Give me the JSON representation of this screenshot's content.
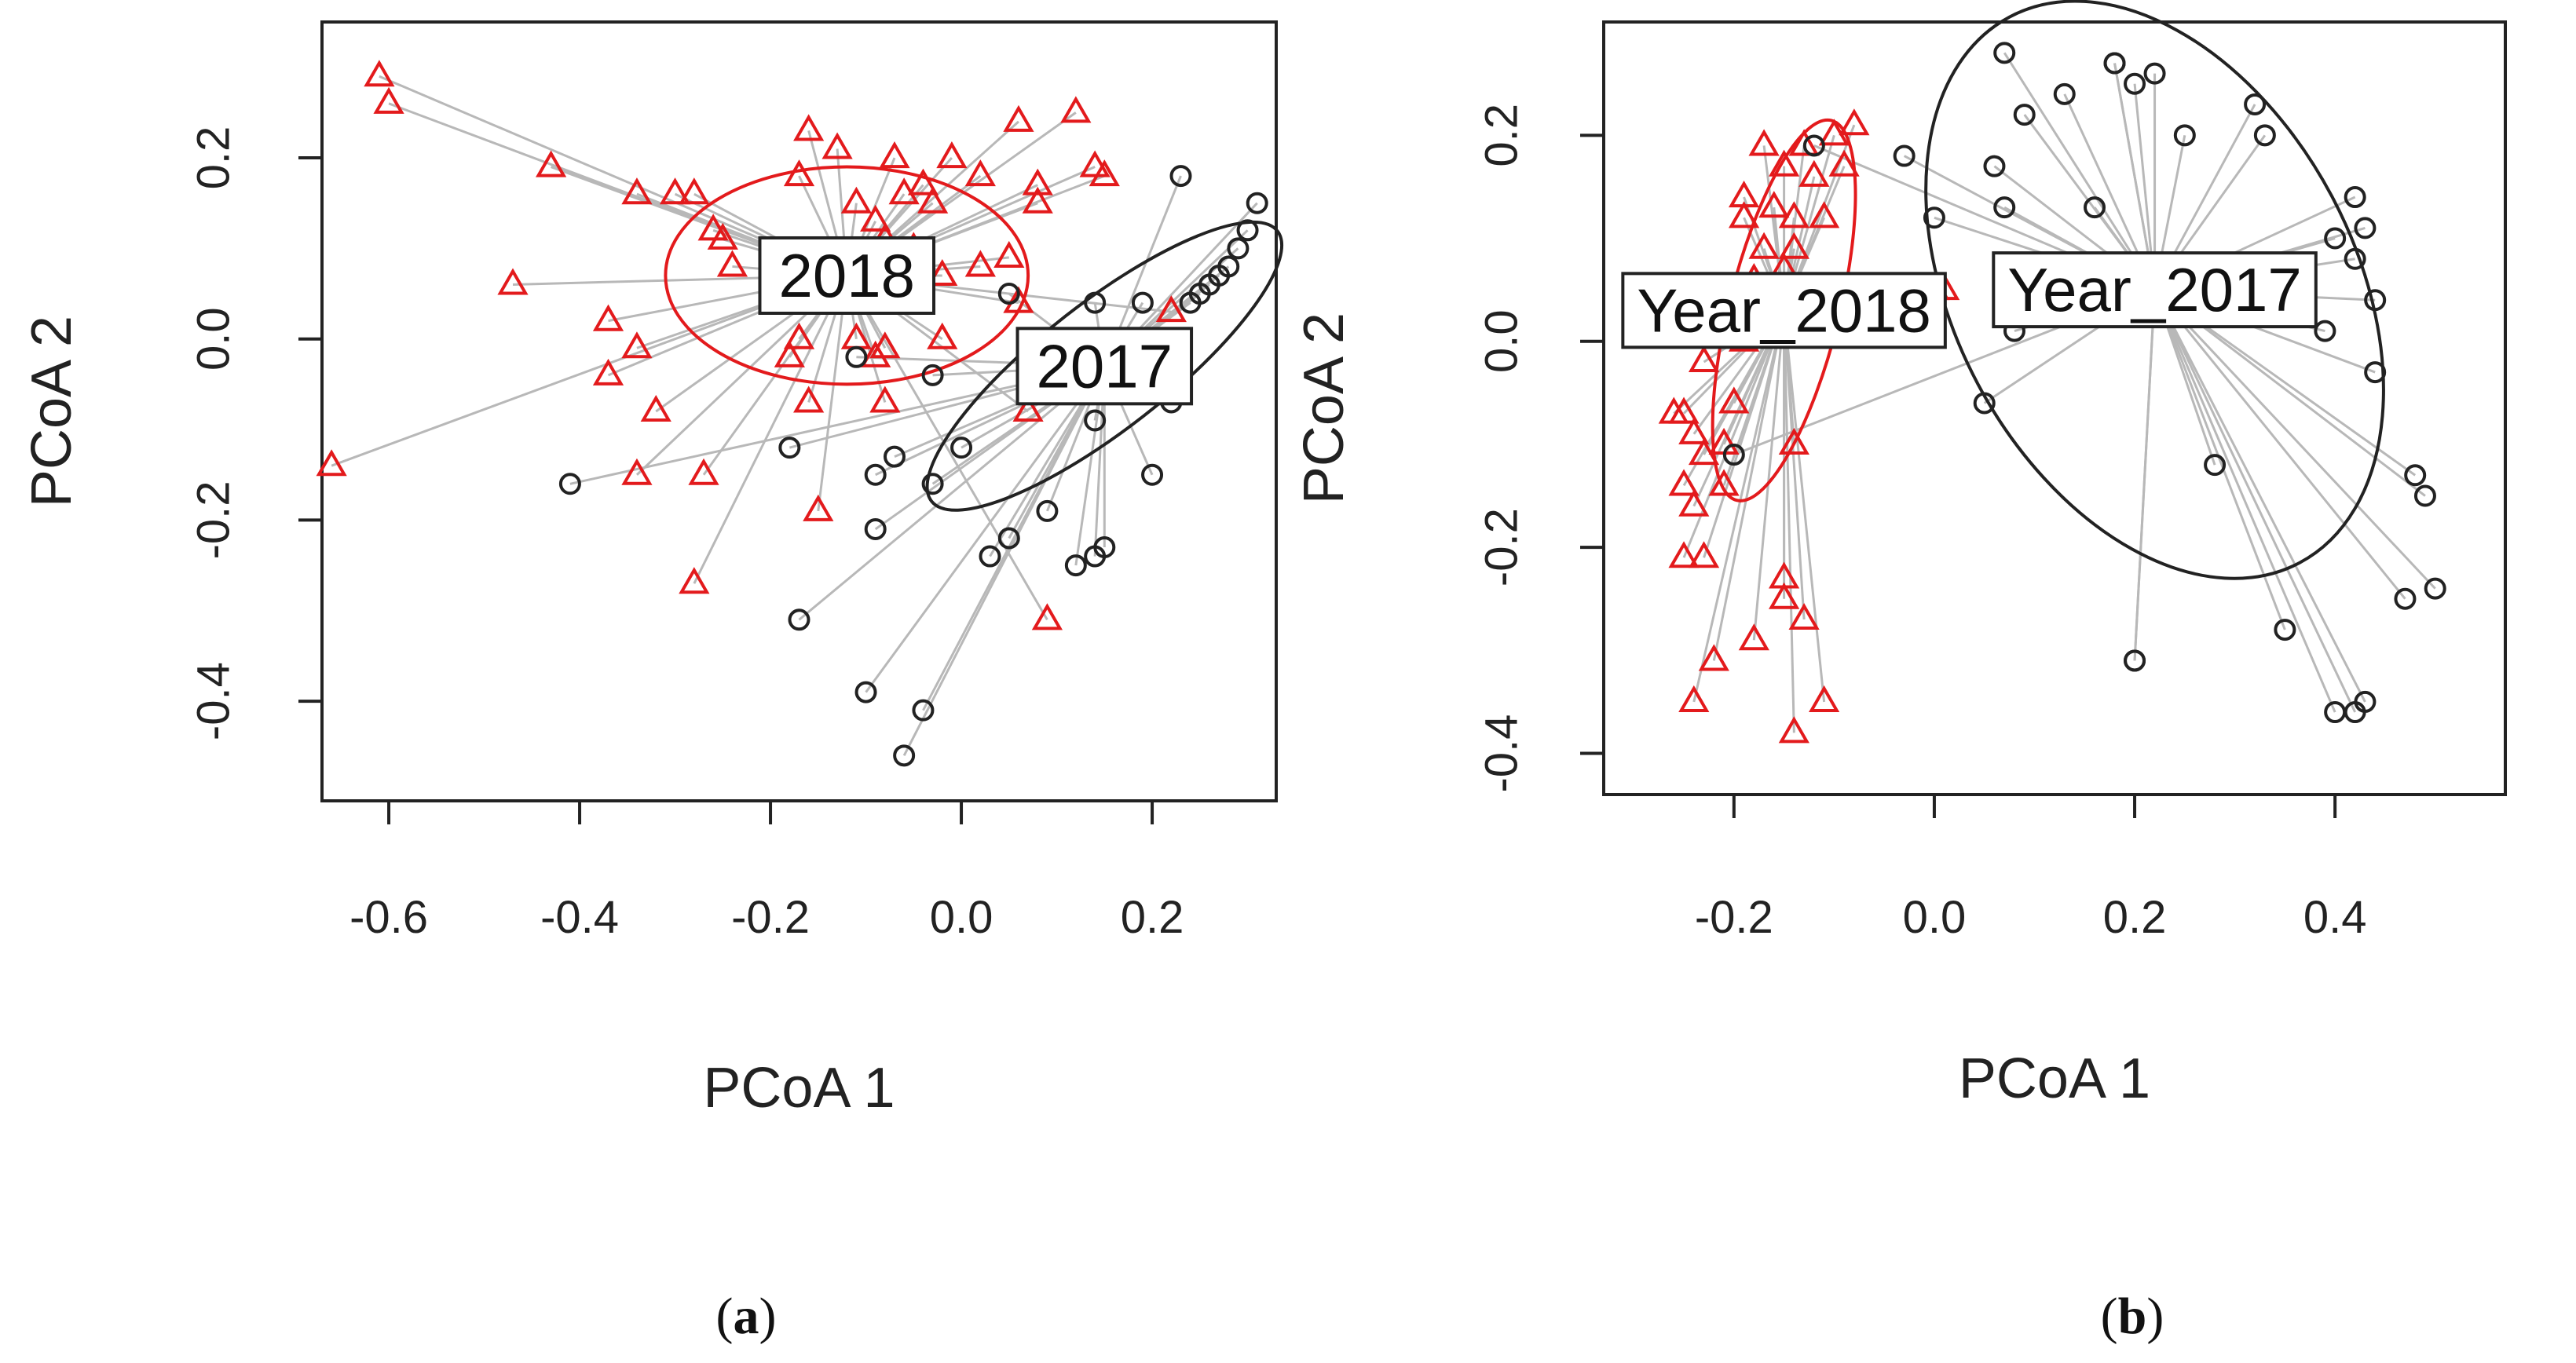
{
  "figure": {
    "panels": [
      {
        "caption_open": "(",
        "caption_letter": "a",
        "caption_close": ")"
      },
      {
        "caption_open": "(",
        "caption_letter": "b",
        "caption_close": ")"
      }
    ]
  },
  "colors": {
    "group_2018": "#e31a1c",
    "group_2017": "#222222",
    "spider": "#b8b8b8",
    "axis": "#222222"
  },
  "chart_data": [
    {
      "type": "scatter",
      "panel": "a",
      "xlabel": "PCoA 1",
      "ylabel": "PCoA 2",
      "xlim": [
        -0.67,
        0.33
      ],
      "ylim": [
        -0.51,
        0.35
      ],
      "xticks": [
        -0.6,
        -0.4,
        -0.2,
        0.0,
        0.2
      ],
      "yticks": [
        -0.4,
        -0.2,
        0.0,
        0.2
      ],
      "xtick_labels": [
        "-0.6",
        "-0.4",
        "-0.2",
        "0.0",
        "0.2"
      ],
      "ytick_labels": [
        "-0.4",
        "-0.2",
        "0.0",
        "0.2"
      ],
      "grid": false,
      "series": [
        {
          "name": "2018",
          "label": "2018",
          "marker": "triangle",
          "color": "#e31a1c",
          "centroid": [
            -0.12,
            0.07
          ],
          "ellipse": {
            "rx": 0.19,
            "ry": 0.12,
            "angle": 0
          },
          "points": [
            [
              -0.61,
              0.29
            ],
            [
              -0.6,
              0.26
            ],
            [
              -0.43,
              0.19
            ],
            [
              -0.34,
              0.16
            ],
            [
              -0.3,
              0.16
            ],
            [
              -0.28,
              0.16
            ],
            [
              -0.25,
              0.11
            ],
            [
              -0.26,
              0.12
            ],
            [
              -0.24,
              0.08
            ],
            [
              -0.47,
              0.06
            ],
            [
              -0.37,
              0.02
            ],
            [
              -0.34,
              -0.01
            ],
            [
              -0.37,
              -0.04
            ],
            [
              -0.32,
              -0.08
            ],
            [
              -0.34,
              -0.15
            ],
            [
              -0.27,
              -0.15
            ],
            [
              -0.28,
              -0.27
            ],
            [
              -0.66,
              -0.14
            ],
            [
              -0.16,
              0.23
            ],
            [
              -0.13,
              0.21
            ],
            [
              -0.17,
              0.18
            ],
            [
              -0.11,
              0.15
            ],
            [
              -0.07,
              0.2
            ],
            [
              -0.04,
              0.17
            ],
            [
              -0.01,
              0.2
            ],
            [
              0.02,
              0.18
            ],
            [
              0.06,
              0.24
            ],
            [
              0.12,
              0.25
            ],
            [
              0.08,
              0.17
            ],
            [
              0.08,
              0.15
            ],
            [
              0.14,
              0.19
            ],
            [
              0.15,
              0.18
            ],
            [
              -0.06,
              0.16
            ],
            [
              -0.09,
              0.13
            ],
            [
              -0.08,
              0.11
            ],
            [
              -0.05,
              0.1
            ],
            [
              -0.03,
              0.15
            ],
            [
              -0.02,
              0.07
            ],
            [
              0.02,
              0.08
            ],
            [
              0.05,
              0.09
            ],
            [
              -0.02,
              0.0
            ],
            [
              0.06,
              0.04
            ],
            [
              -0.18,
              -0.02
            ],
            [
              -0.17,
              0.0
            ],
            [
              -0.11,
              0.0
            ],
            [
              -0.09,
              -0.02
            ],
            [
              -0.08,
              -0.01
            ],
            [
              -0.16,
              -0.07
            ],
            [
              -0.08,
              -0.07
            ],
            [
              -0.15,
              -0.19
            ],
            [
              0.07,
              -0.08
            ],
            [
              0.09,
              -0.31
            ],
            [
              0.22,
              0.03
            ]
          ]
        },
        {
          "name": "2017",
          "label": "2017",
          "marker": "circle",
          "color": "#222222",
          "centroid": [
            0.15,
            -0.03
          ],
          "ellipse": {
            "rx": 0.23,
            "ry": 0.07,
            "angle": -38
          },
          "points": [
            [
              0.23,
              0.18
            ],
            [
              0.31,
              0.15
            ],
            [
              0.3,
              0.12
            ],
            [
              0.29,
              0.1
            ],
            [
              0.28,
              0.08
            ],
            [
              0.27,
              0.07
            ],
            [
              0.26,
              0.06
            ],
            [
              0.25,
              0.05
            ],
            [
              0.24,
              0.04
            ],
            [
              0.19,
              0.04
            ],
            [
              0.14,
              0.04
            ],
            [
              0.05,
              0.05
            ],
            [
              0.21,
              -0.02
            ],
            [
              0.22,
              -0.07
            ],
            [
              0.17,
              -0.06
            ],
            [
              0.14,
              -0.09
            ],
            [
              0.2,
              -0.15
            ],
            [
              0.15,
              -0.23
            ],
            [
              0.14,
              -0.24
            ],
            [
              0.12,
              -0.25
            ],
            [
              0.09,
              -0.19
            ],
            [
              0.05,
              -0.22
            ],
            [
              0.03,
              -0.24
            ],
            [
              0.0,
              -0.12
            ],
            [
              -0.03,
              -0.04
            ],
            [
              -0.07,
              -0.13
            ],
            [
              -0.09,
              -0.15
            ],
            [
              -0.03,
              -0.16
            ],
            [
              -0.09,
              -0.21
            ],
            [
              -0.11,
              -0.02
            ],
            [
              -0.18,
              -0.12
            ],
            [
              -0.41,
              -0.16
            ],
            [
              -0.17,
              -0.31
            ],
            [
              -0.1,
              -0.39
            ],
            [
              -0.04,
              -0.41
            ],
            [
              -0.06,
              -0.46
            ]
          ]
        }
      ]
    },
    {
      "type": "scatter",
      "panel": "b",
      "xlabel": "PCoA 1",
      "ylabel": "PCoA 2",
      "xlim": [
        -0.33,
        0.57
      ],
      "ylim": [
        -0.44,
        0.31
      ],
      "xticks": [
        -0.2,
        0.0,
        0.2,
        0.4
      ],
      "yticks": [
        -0.4,
        -0.2,
        0.0,
        0.2
      ],
      "xtick_labels": [
        "-0.2",
        "0.0",
        "0.2",
        "0.4"
      ],
      "ytick_labels": [
        "-0.4",
        "-0.2",
        "0.0",
        "0.2"
      ],
      "grid": false,
      "series": [
        {
          "name": "Year_2018",
          "label": "Year_2018",
          "marker": "triangle",
          "color": "#e31a1c",
          "centroid": [
            -0.15,
            0.03
          ],
          "ellipse": {
            "rx": 0.055,
            "ry": 0.19,
            "angle": 14
          },
          "points": [
            [
              -0.17,
              0.19
            ],
            [
              -0.13,
              0.19
            ],
            [
              -0.1,
              0.2
            ],
            [
              -0.08,
              0.21
            ],
            [
              -0.15,
              0.17
            ],
            [
              -0.12,
              0.16
            ],
            [
              -0.09,
              0.17
            ],
            [
              -0.19,
              0.14
            ],
            [
              -0.16,
              0.13
            ],
            [
              -0.19,
              0.12
            ],
            [
              -0.14,
              0.12
            ],
            [
              -0.11,
              0.12
            ],
            [
              -0.17,
              0.09
            ],
            [
              -0.14,
              0.09
            ],
            [
              -0.15,
              0.07
            ],
            [
              -0.18,
              0.06
            ],
            [
              -0.17,
              0.05
            ],
            [
              -0.13,
              0.05
            ],
            [
              -0.21,
              0.04
            ],
            [
              -0.24,
              0.04
            ],
            [
              -0.22,
              0.01
            ],
            [
              -0.19,
              0.0
            ],
            [
              -0.23,
              -0.02
            ],
            [
              -0.26,
              -0.07
            ],
            [
              -0.25,
              -0.07
            ],
            [
              -0.24,
              -0.09
            ],
            [
              -0.2,
              -0.06
            ],
            [
              -0.21,
              -0.1
            ],
            [
              -0.23,
              -0.11
            ],
            [
              -0.14,
              -0.1
            ],
            [
              -0.25,
              -0.14
            ],
            [
              -0.21,
              -0.14
            ],
            [
              -0.24,
              -0.16
            ],
            [
              -0.25,
              -0.21
            ],
            [
              -0.23,
              -0.21
            ],
            [
              -0.15,
              -0.23
            ],
            [
              -0.15,
              -0.25
            ],
            [
              -0.18,
              -0.29
            ],
            [
              -0.13,
              -0.27
            ],
            [
              -0.22,
              -0.31
            ],
            [
              -0.24,
              -0.35
            ],
            [
              -0.11,
              -0.35
            ],
            [
              -0.14,
              -0.38
            ],
            [
              0.0,
              0.05
            ],
            [
              0.01,
              0.05
            ]
          ]
        },
        {
          "name": "Year_2017",
          "label": "Year_2017",
          "marker": "circle",
          "color": "#222222",
          "centroid": [
            0.22,
            0.05
          ],
          "ellipse": {
            "rx": 0.2,
            "ry": 0.3,
            "angle": -28
          },
          "points": [
            [
              0.07,
              0.28
            ],
            [
              0.18,
              0.27
            ],
            [
              0.18,
              0.27
            ],
            [
              0.22,
              0.26
            ],
            [
              0.2,
              0.25
            ],
            [
              0.13,
              0.24
            ],
            [
              0.09,
              0.22
            ],
            [
              0.25,
              0.2
            ],
            [
              0.32,
              0.23
            ],
            [
              0.33,
              0.2
            ],
            [
              -0.12,
              0.19
            ],
            [
              -0.03,
              0.18
            ],
            [
              0.06,
              0.17
            ],
            [
              0.0,
              0.12
            ],
            [
              0.07,
              0.13
            ],
            [
              0.16,
              0.13
            ],
            [
              0.42,
              0.14
            ],
            [
              0.43,
              0.11
            ],
            [
              0.4,
              0.1
            ],
            [
              0.42,
              0.08
            ],
            [
              0.44,
              0.04
            ],
            [
              0.39,
              0.01
            ],
            [
              0.44,
              -0.03
            ],
            [
              0.08,
              0.01
            ],
            [
              0.05,
              -0.06
            ],
            [
              0.28,
              -0.12
            ],
            [
              0.48,
              -0.13
            ],
            [
              0.49,
              -0.15
            ],
            [
              0.5,
              -0.24
            ],
            [
              0.47,
              -0.25
            ],
            [
              0.35,
              -0.28
            ],
            [
              0.2,
              -0.31
            ],
            [
              0.2,
              -0.31
            ],
            [
              0.4,
              -0.36
            ],
            [
              0.42,
              -0.36
            ],
            [
              0.43,
              -0.35
            ],
            [
              -0.2,
              -0.11
            ]
          ]
        }
      ]
    }
  ]
}
